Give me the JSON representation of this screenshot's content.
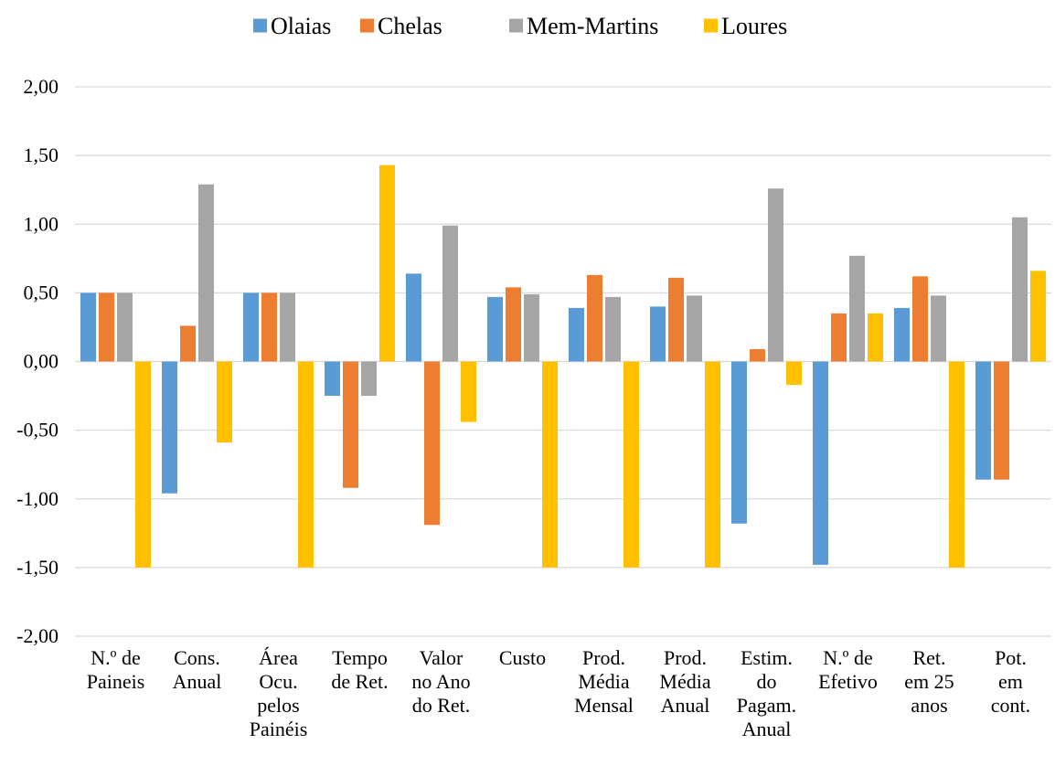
{
  "chart_data": {
    "type": "bar",
    "title": "",
    "xlabel": "",
    "ylabel": "",
    "ylim": [
      -2,
      2
    ],
    "y_ticks": [
      "2,00",
      "1,50",
      "1,00",
      "0,50",
      "0,00",
      "-0,50",
      "-1,00",
      "-1,50",
      "-2,00"
    ],
    "grid": true,
    "legend_position": "top",
    "categories": [
      [
        "N.º de",
        "Paineis"
      ],
      [
        "Cons.",
        "Anual"
      ],
      [
        "Área",
        "Ocu.",
        "pelos",
        "Painéis"
      ],
      [
        "Tempo",
        "de Ret."
      ],
      [
        "Valor",
        "no Ano",
        "do Ret."
      ],
      [
        "Custo"
      ],
      [
        "Prod.",
        "Média",
        "Mensal"
      ],
      [
        "Prod.",
        "Média",
        "Anual"
      ],
      [
        "Estim.",
        "do",
        "Pagam.",
        "Anual"
      ],
      [
        "N.º de",
        "Efetivo"
      ],
      [
        "Ret.",
        "em 25",
        "anos"
      ],
      [
        "Pot.",
        "em",
        "cont."
      ]
    ],
    "series": [
      {
        "name": "Olaias",
        "color": "#5b9bd5",
        "values": [
          0.5,
          -0.96,
          0.5,
          -0.25,
          0.64,
          0.47,
          0.39,
          0.4,
          -1.18,
          -1.48,
          0.39,
          -0.86
        ]
      },
      {
        "name": "Chelas",
        "color": "#ed7d31",
        "values": [
          0.5,
          0.26,
          0.5,
          -0.92,
          -1.19,
          0.54,
          0.63,
          0.61,
          0.09,
          0.35,
          0.62,
          -0.86
        ]
      },
      {
        "name": "Mem-Martins",
        "color": "#a5a5a5",
        "values": [
          0.5,
          1.29,
          0.5,
          -0.25,
          0.99,
          0.49,
          0.47,
          0.48,
          1.26,
          0.77,
          0.48,
          1.05
        ]
      },
      {
        "name": "Loures",
        "color": "#ffc000",
        "values": [
          -1.5,
          -0.59,
          -1.5,
          1.43,
          -0.44,
          -1.5,
          -1.5,
          -1.5,
          -0.17,
          0.35,
          -1.5,
          0.66
        ]
      }
    ]
  }
}
